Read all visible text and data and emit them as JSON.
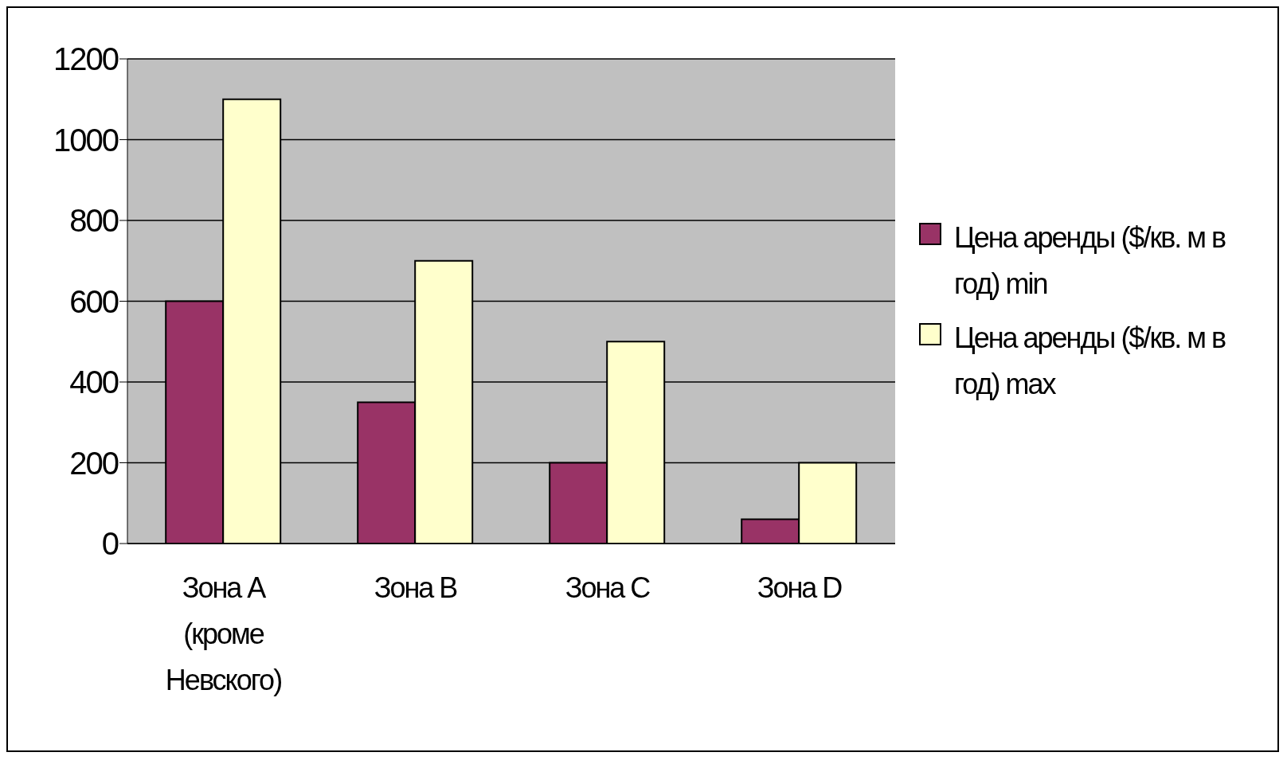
{
  "chart_data": {
    "type": "bar",
    "categories": [
      "Зона A (кроме Невского)",
      "Зона B",
      "Зона C",
      "Зона D"
    ],
    "series": [
      {
        "name": "Цена аренды ($/кв. м в год) min",
        "color": "#993366",
        "values": [
          600,
          350,
          200,
          60
        ]
      },
      {
        "name": "Цена аренды ($/кв. м в год) max",
        "color": "#ffffcc",
        "values": [
          1100,
          700,
          500,
          200
        ]
      }
    ],
    "ylim": [
      0,
      1200
    ],
    "yticks": [
      0,
      200,
      400,
      600,
      800,
      1000,
      1200
    ],
    "grid": "y",
    "legend": "right"
  }
}
